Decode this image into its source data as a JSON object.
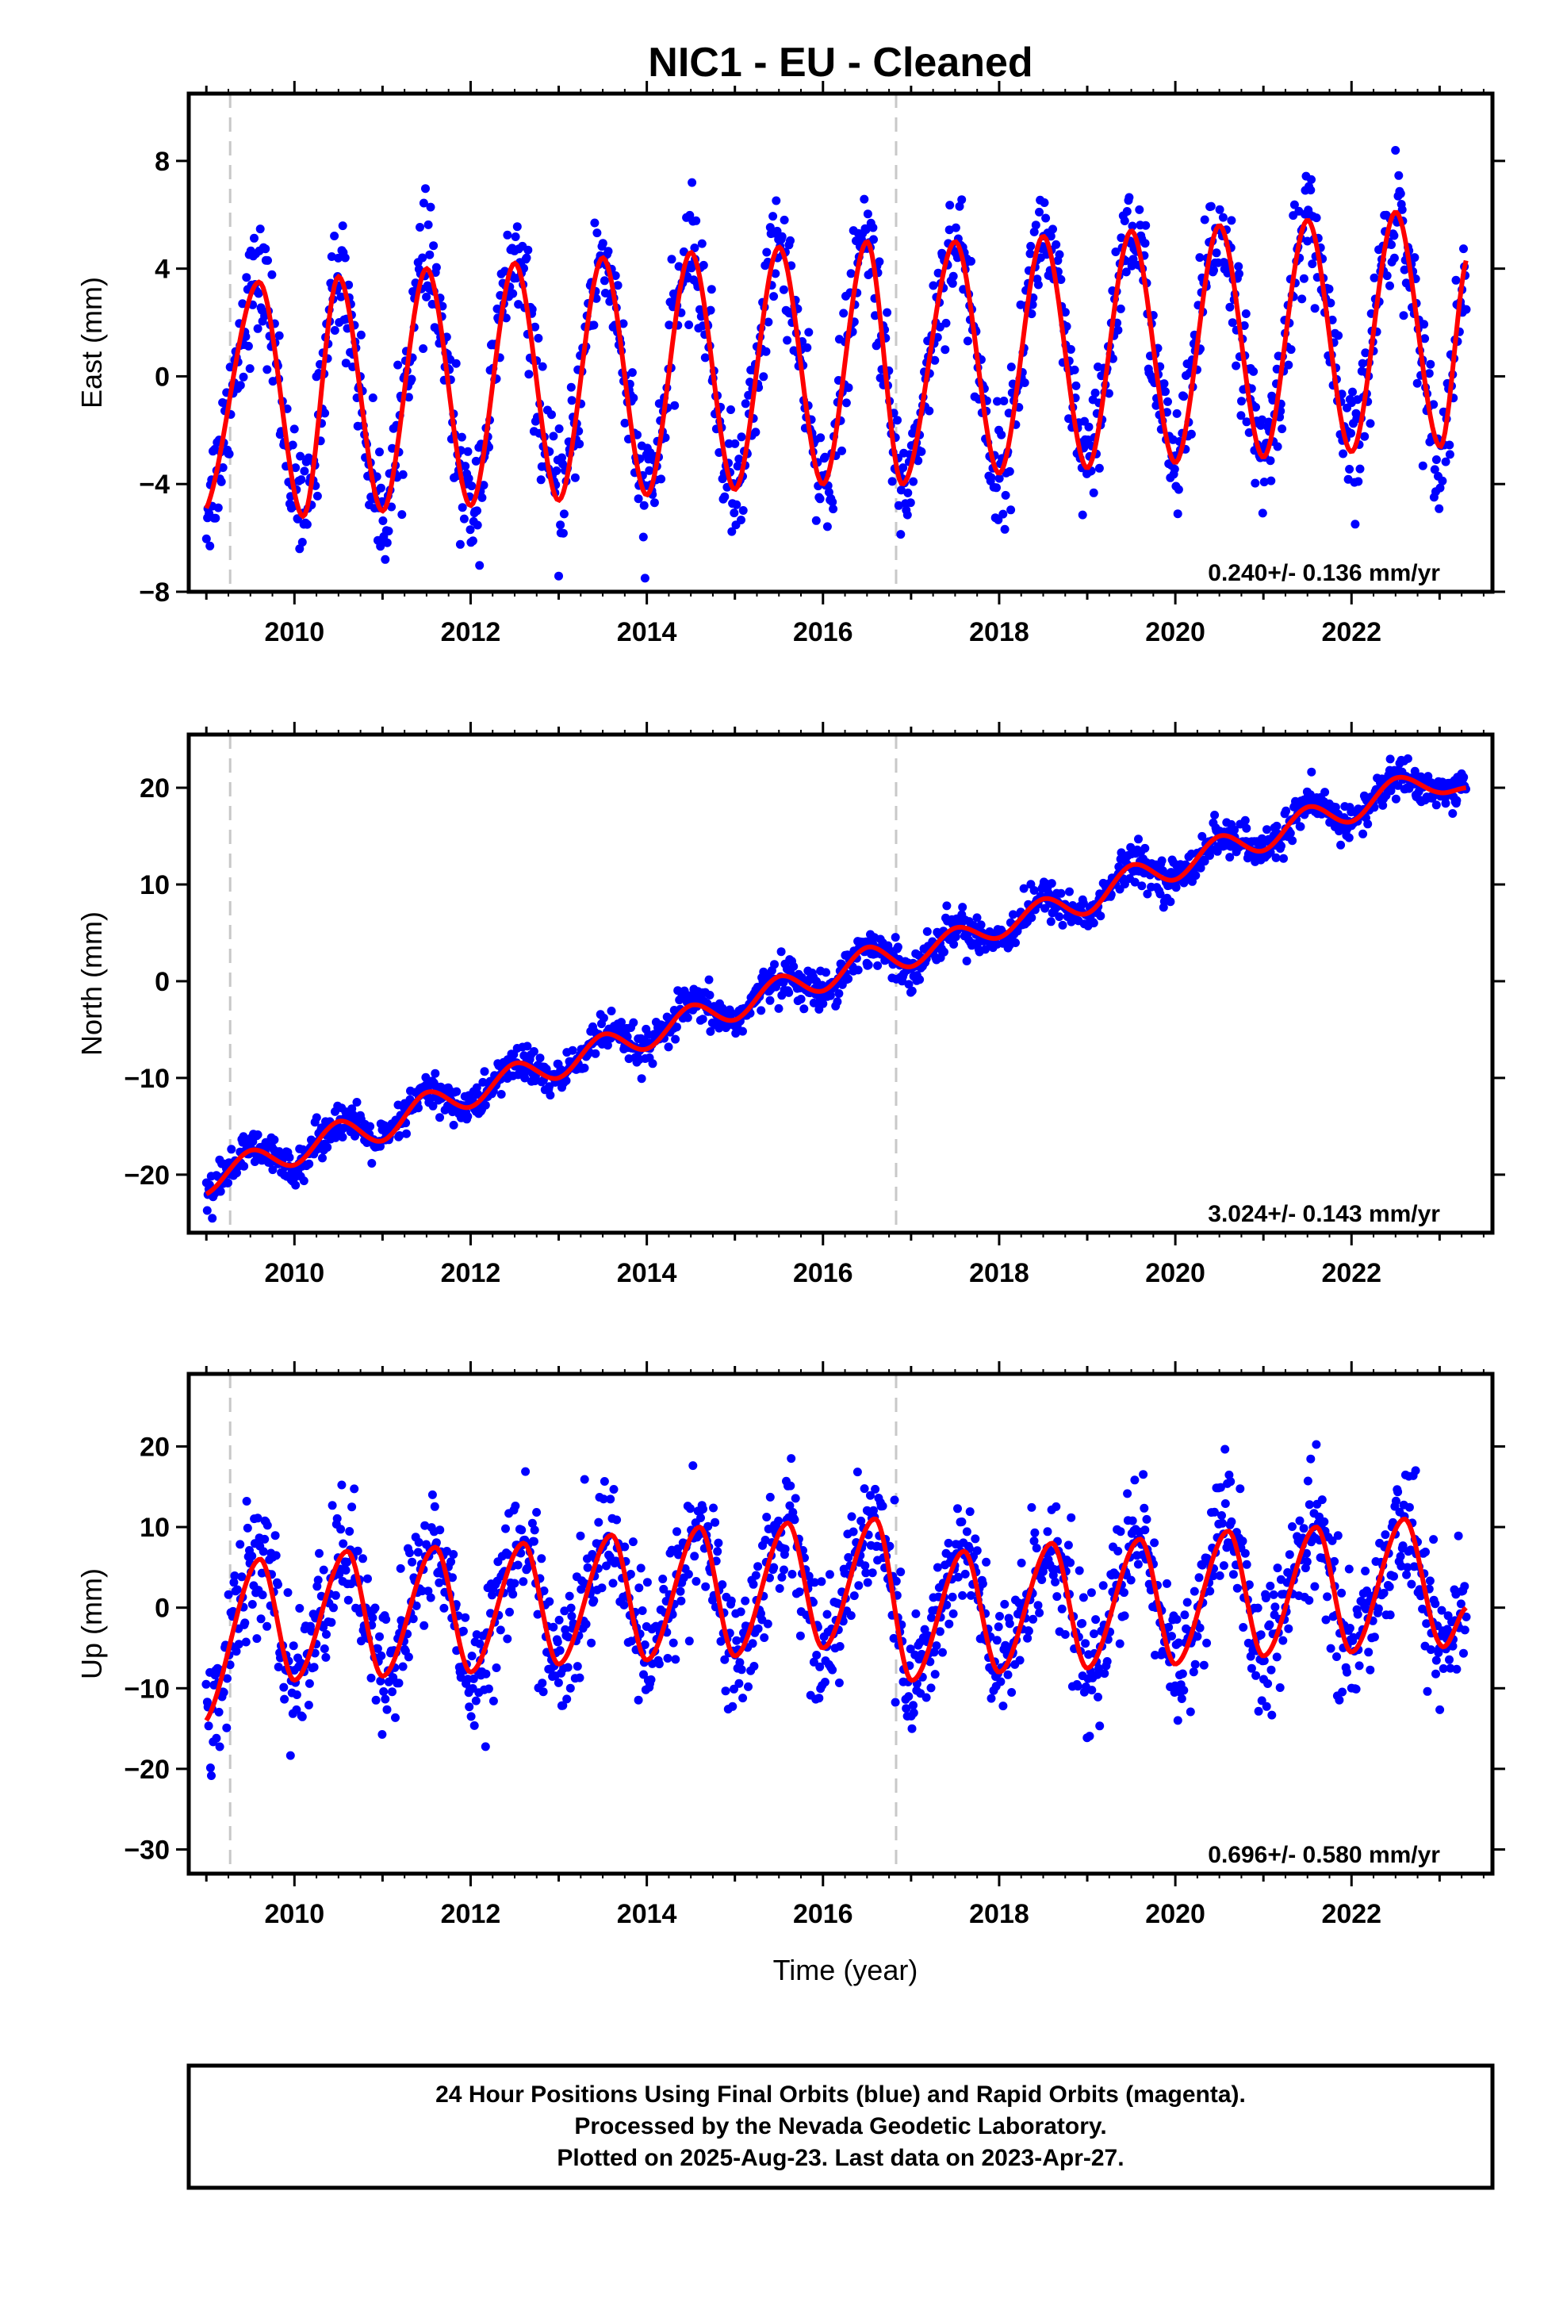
{
  "title": "NIC1  - EU - Cleaned",
  "xlabel": "Time (year)",
  "footer": {
    "line1": "24 Hour Positions Using Final Orbits (blue) and Rapid Orbits (magenta).",
    "line2": "Processed by the Nevada Geodetic Laboratory.",
    "line3": "Plotted on 2025-Aug-23. Last data on 2023-Apr-27."
  },
  "colors": {
    "points": "#0000ff",
    "model": "#ff0000",
    "events": "#c8c8c8",
    "frame": "#000000"
  },
  "chart_data": [
    {
      "type": "scatter",
      "component": "East",
      "ylabel": "East (mm)",
      "rate_label": "0.240+/- 0.136 mm/yr",
      "xlim": [
        2008.8,
        2023.6
      ],
      "ylim": [
        -8,
        10.5
      ],
      "yticks": [
        -8,
        -4,
        0,
        4,
        8
      ],
      "xticks": [
        2010,
        2012,
        2014,
        2016,
        2018,
        2020,
        2022
      ],
      "event_lines": [
        2009.27,
        2016.83
      ],
      "model": {
        "trend": [
          2016.0,
          0.0,
          0.24
        ],
        "seasonal": [
          {
            "year": 2009.0,
            "amp": 4.6
          },
          {
            "year": 2013.0,
            "amp": 4.4
          },
          {
            "year": 2017.0,
            "amp": 4.5
          },
          {
            "year": 2020.0,
            "amp": 4.5
          },
          {
            "year": 2023.4,
            "amp": 4.4
          }
        ]
      },
      "scatter_sigma": 1.1,
      "series": [
        {
          "x": [
            2009.0,
            2009.6,
            2010.1,
            2010.5,
            2011.0,
            2011.5,
            2012.0,
            2012.5,
            2013.0,
            2013.5,
            2014.0,
            2014.5,
            2015.0,
            2015.5,
            2016.0,
            2016.5,
            2016.9,
            2017.5,
            2018.0,
            2018.5,
            2019.0,
            2019.5,
            2020.0,
            2020.5,
            2021.0,
            2021.5,
            2022.0,
            2022.5,
            2023.0,
            2023.3
          ],
          "y": [
            -4.9,
            3.5,
            -5.2,
            3.7,
            -5.0,
            4.0,
            -4.8,
            4.2,
            -4.6,
            4.4,
            -4.4,
            4.6,
            -4.2,
            4.8,
            -4.0,
            5.0,
            -4.0,
            5.0,
            -3.6,
            5.2,
            -3.4,
            5.4,
            -3.2,
            5.6,
            -3.0,
            5.8,
            -2.8,
            6.1,
            -2.6,
            4.3
          ]
        }
      ]
    },
    {
      "type": "scatter",
      "component": "North",
      "ylabel": "North (mm)",
      "rate_label": "3.024+/- 0.143 mm/yr",
      "xlim": [
        2008.8,
        2023.6
      ],
      "ylim": [
        -26,
        25.5
      ],
      "yticks": [
        -20,
        -10,
        0,
        10,
        20
      ],
      "xticks": [
        2010,
        2012,
        2014,
        2016,
        2018,
        2020,
        2022
      ],
      "event_lines": [
        2009.27,
        2016.83
      ],
      "model": {
        "trend": [
          2016.0,
          0.0,
          3.024
        ],
        "seasonal": [
          {
            "year": 2009.0,
            "amp": 1.5
          },
          {
            "year": 2023.4,
            "amp": 1.5
          }
        ]
      },
      "scatter_sigma": 1.0,
      "series": [
        {
          "x": [
            2009.0,
            2009.5,
            2010.0,
            2010.5,
            2011.0,
            2011.5,
            2012.0,
            2012.5,
            2013.0,
            2013.5,
            2014.0,
            2014.5,
            2015.0,
            2015.5,
            2016.0,
            2016.5,
            2017.0,
            2017.5,
            2018.0,
            2018.5,
            2019.0,
            2019.5,
            2020.0,
            2020.5,
            2021.0,
            2021.5,
            2022.0,
            2022.5,
            2023.0,
            2023.3
          ],
          "y": [
            -22.0,
            -17.5,
            -19.0,
            -14.5,
            -16.5,
            -11.5,
            -13.0,
            -8.5,
            -10.0,
            -5.5,
            -7.0,
            -2.5,
            -4.0,
            0.5,
            -1.0,
            3.5,
            1.5,
            5.5,
            4.5,
            8.5,
            7.0,
            12.0,
            10.5,
            15.0,
            13.5,
            18.0,
            16.5,
            21.0,
            19.5,
            20.0
          ]
        }
      ]
    },
    {
      "type": "scatter",
      "component": "Up",
      "ylabel": "Up (mm)",
      "rate_label": "0.696+/- 0.580 mm/yr",
      "xlim": [
        2008.8,
        2023.6
      ],
      "ylim": [
        -33,
        29
      ],
      "yticks": [
        -30,
        -20,
        -10,
        0,
        10,
        20
      ],
      "xticks": [
        2010,
        2012,
        2014,
        2016,
        2018,
        2020,
        2022
      ],
      "event_lines": [
        2009.27,
        2016.83
      ],
      "model": {
        "trend": [
          2016.0,
          0.0,
          0.696
        ],
        "seasonal": [
          {
            "year": 2009.0,
            "amp": 8.0
          },
          {
            "year": 2023.4,
            "amp": 8.0
          }
        ]
      },
      "scatter_sigma": 4.0,
      "series": [
        {
          "x": [
            2009.0,
            2009.6,
            2010.0,
            2010.6,
            2011.0,
            2011.6,
            2012.0,
            2012.6,
            2013.0,
            2013.6,
            2014.0,
            2014.6,
            2015.0,
            2015.6,
            2016.0,
            2016.6,
            2017.0,
            2017.6,
            2018.0,
            2018.6,
            2019.0,
            2019.6,
            2020.0,
            2020.6,
            2021.0,
            2021.6,
            2022.0,
            2022.6,
            2023.0,
            2023.3
          ],
          "y": [
            -14.0,
            6.0,
            -9.0,
            7.0,
            -8.5,
            7.5,
            -8.0,
            8.0,
            -7.0,
            9.0,
            -6.5,
            10.0,
            -6.0,
            10.5,
            -5.0,
            11.0,
            -9.0,
            7.0,
            -8.0,
            8.0,
            -7.5,
            8.5,
            -7.0,
            9.5,
            -6.0,
            10.0,
            -5.5,
            11.0,
            -4.5,
            0.0
          ]
        }
      ]
    }
  ]
}
